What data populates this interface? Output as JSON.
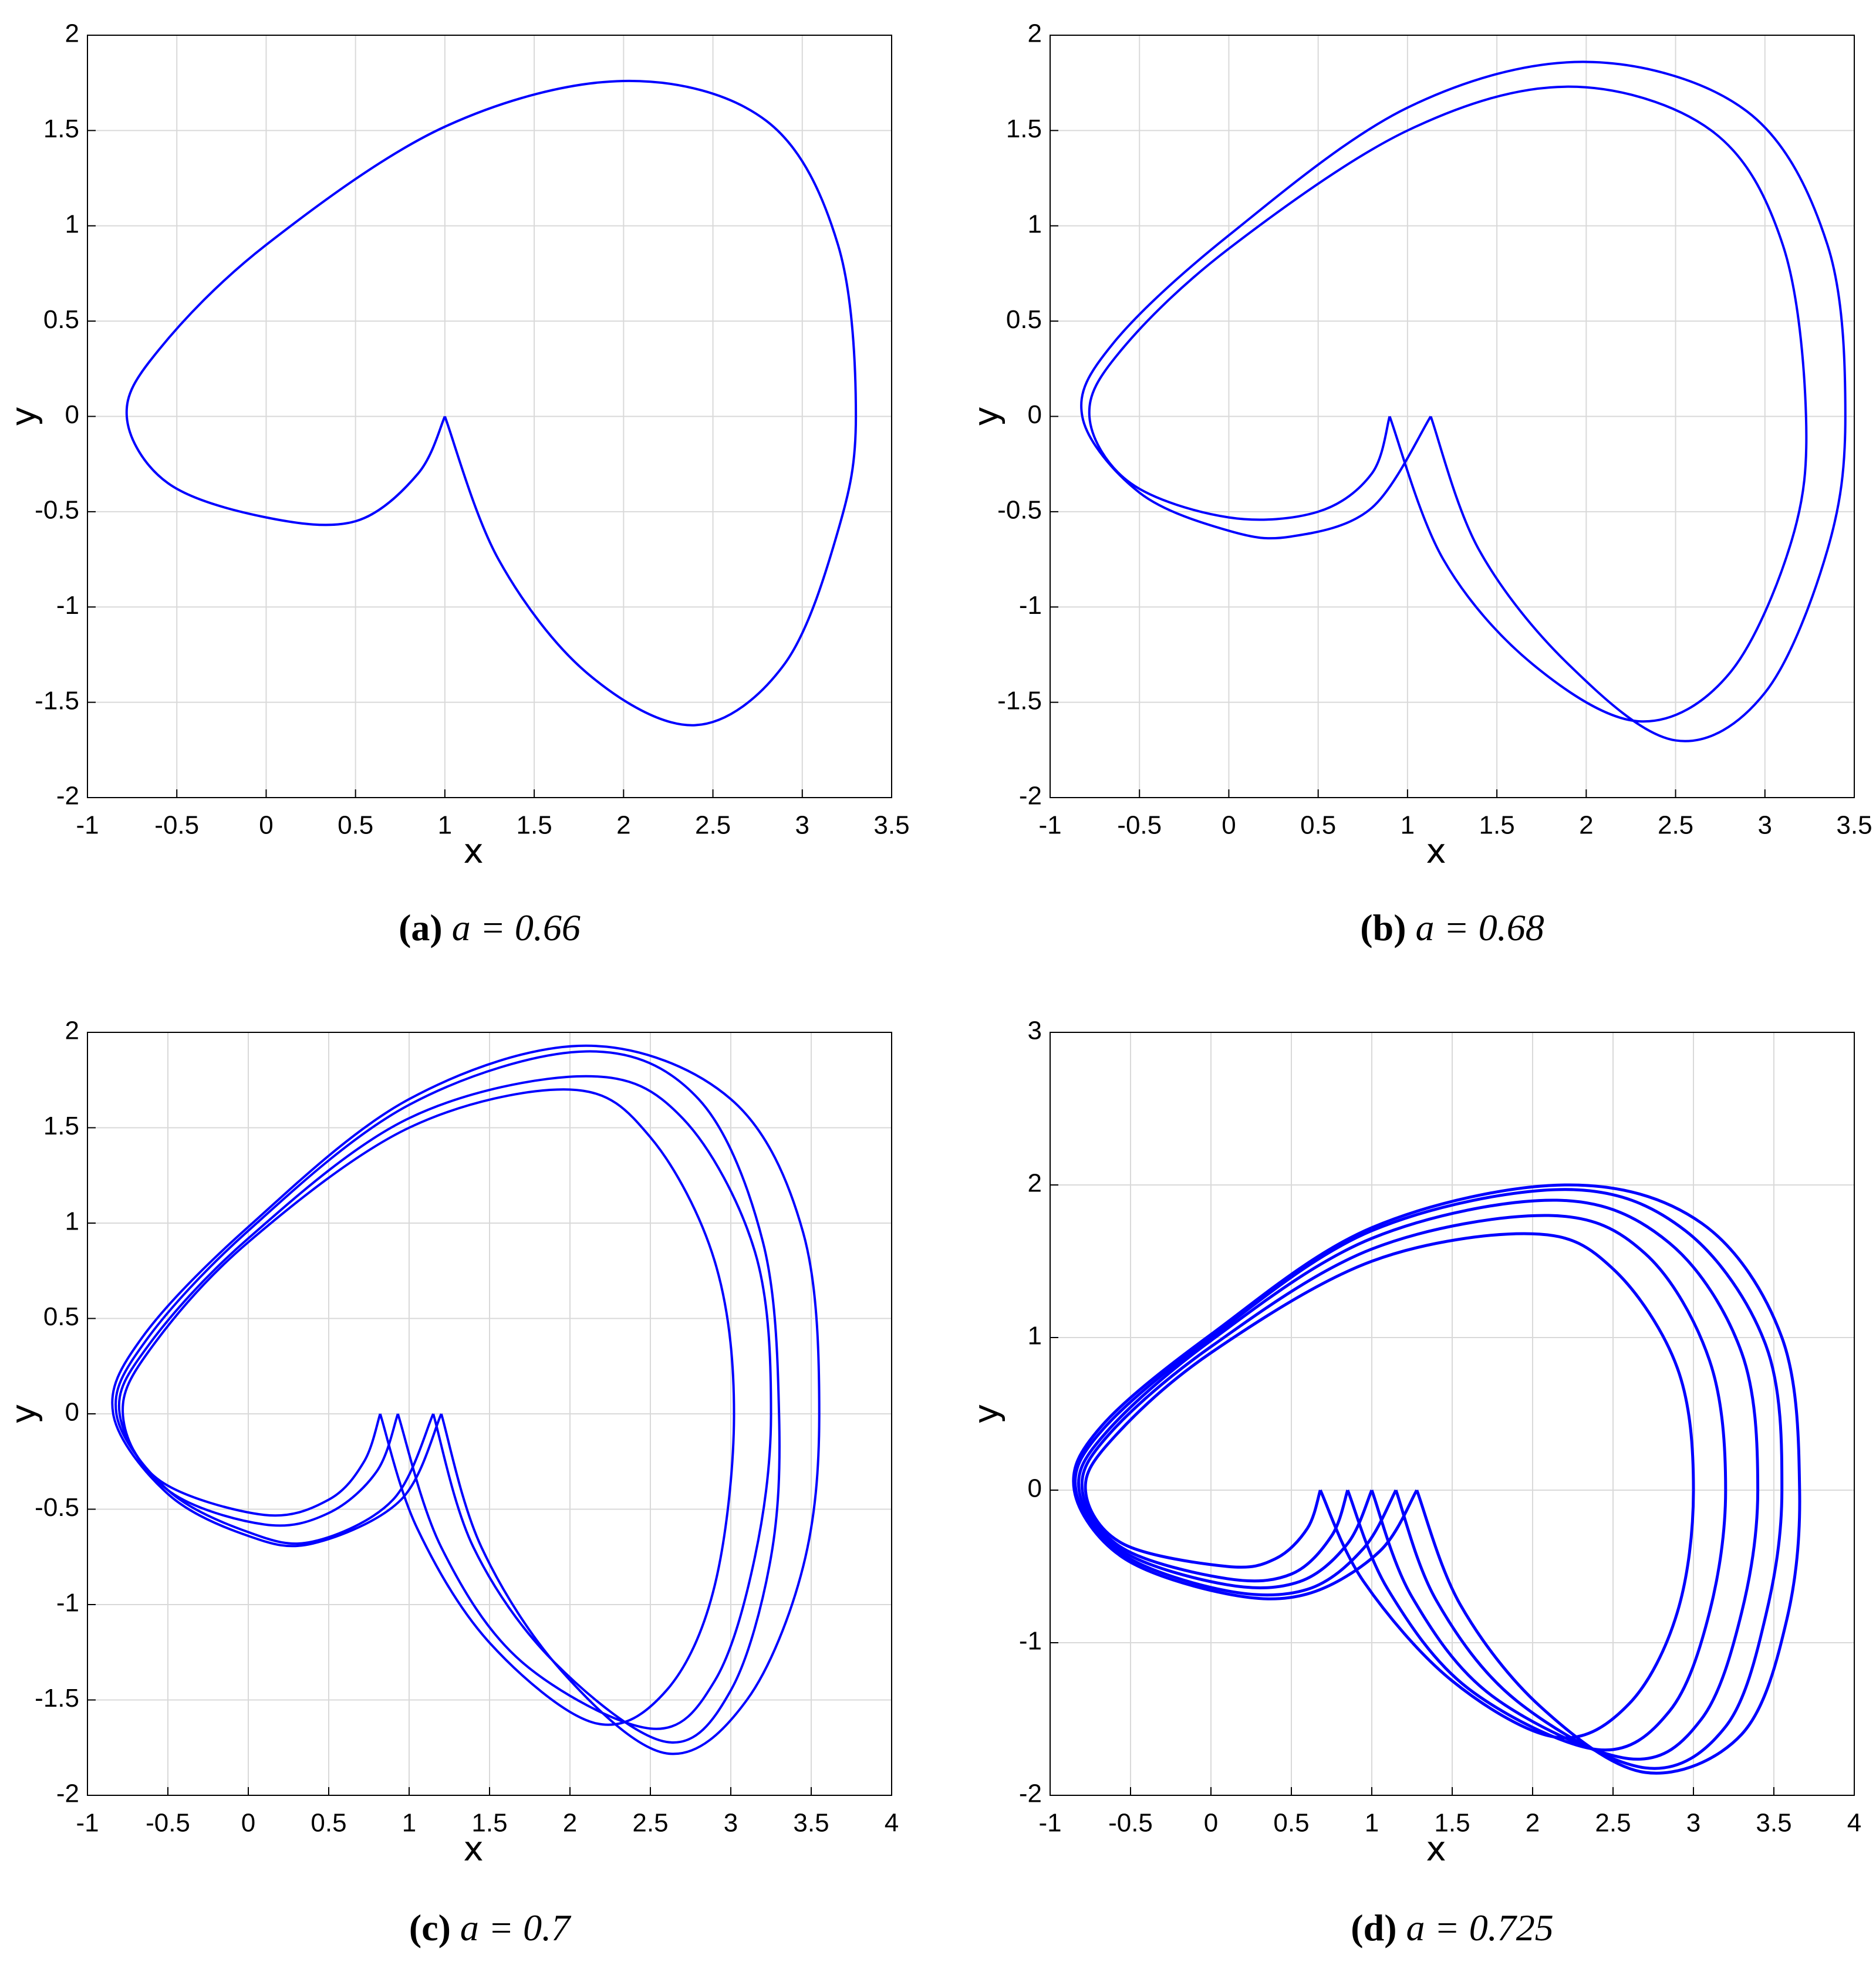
{
  "chart_data": [
    {
      "type": "line",
      "panel": "(a)",
      "caption": "a = 0.66",
      "x_label": "x",
      "y_label": "y",
      "xlim": [
        -1,
        3.5
      ],
      "ylim": [
        -2,
        2
      ],
      "xticks": [
        -1,
        -0.5,
        0,
        0.5,
        1,
        1.5,
        2,
        2.5,
        3,
        3.5
      ],
      "yticks": [
        -2,
        -1.5,
        -1,
        -0.5,
        0,
        0.5,
        1,
        1.5,
        2
      ],
      "grid": true,
      "series": [
        {
          "color": "#0000ff",
          "x": [
            1,
            1.3,
            1.8,
            2.4,
            2.9,
            3.2,
            3.3,
            3.2,
            2.8,
            2,
            1,
            0,
            -0.6,
            -0.78,
            -0.55,
            0,
            0.5,
            0.85,
            1
          ],
          "y": [
            0,
            -0.75,
            -1.35,
            -1.62,
            -1.3,
            -0.6,
            0,
            0.9,
            1.55,
            1.76,
            1.52,
            0.9,
            0.35,
            0,
            -0.35,
            -0.53,
            -0.55,
            -0.3,
            0
          ]
        }
      ]
    },
    {
      "type": "line",
      "panel": "(b)",
      "caption": "a = 0.68",
      "x_label": "x",
      "y_label": "y",
      "xlim": [
        -1,
        3.5
      ],
      "ylim": [
        -2,
        2
      ],
      "xticks": [
        -1,
        -0.5,
        0,
        0.5,
        1,
        1.5,
        2,
        2.5,
        3,
        3.5
      ],
      "yticks": [
        -2,
        -1.5,
        -1,
        -0.5,
        0,
        0.5,
        1,
        1.5,
        2
      ],
      "grid": true,
      "series": [
        {
          "color": "#0000ff",
          "x": [
            0.9,
            1.2,
            1.7,
            2.3,
            2.8,
            3.15,
            3.23,
            3.1,
            2.7,
            1.9,
            1,
            0,
            -0.6,
            -0.78,
            -0.55,
            0,
            0.5,
            0.8,
            0.9
          ],
          "y": [
            0,
            -0.75,
            -1.3,
            -1.6,
            -1.35,
            -0.65,
            0,
            0.9,
            1.5,
            1.73,
            1.5,
            0.88,
            0.35,
            0,
            -0.35,
            -0.53,
            -0.5,
            -0.3,
            0
          ]
        },
        {
          "color": "#0000ff",
          "x": [
            1.13,
            1.4,
            1.9,
            2.5,
            3.0,
            3.35,
            3.45,
            3.35,
            2.9,
            2,
            1,
            0,
            -0.65,
            -0.82,
            -0.5,
            0,
            0.35,
            0.8,
            1.13
          ],
          "y": [
            0,
            -0.7,
            -1.3,
            -1.7,
            -1.45,
            -0.7,
            0,
            0.9,
            1.6,
            1.86,
            1.62,
            0.95,
            0.38,
            0,
            -0.4,
            -0.6,
            -0.63,
            -0.48,
            0
          ]
        }
      ]
    },
    {
      "type": "line",
      "panel": "(c)",
      "caption": "a = 0.7",
      "x_label": "x",
      "y_label": "y",
      "xlim": [
        -1,
        4
      ],
      "ylim": [
        -2,
        2
      ],
      "xticks": [
        -1,
        -0.5,
        0,
        0.5,
        1,
        1.5,
        2,
        2.5,
        3,
        3.5,
        4
      ],
      "yticks": [
        -2,
        -1.5,
        -1,
        -0.5,
        0,
        0.5,
        1,
        1.5,
        2
      ],
      "grid": true,
      "series": [
        {
          "color": "#0000ff",
          "x": [
            0.82,
            1.05,
            1.5,
            2.15,
            2.6,
            2.9,
            3.02,
            2.9,
            2.5,
            2,
            1,
            0,
            -0.6,
            -0.78,
            -0.55,
            0.1,
            0.5,
            0.72,
            0.82
          ],
          "y": [
            0,
            -0.6,
            -1.2,
            -1.62,
            -1.45,
            -0.9,
            0,
            0.8,
            1.45,
            1.7,
            1.5,
            0.9,
            0.35,
            0,
            -0.35,
            -0.53,
            -0.45,
            -0.25,
            0
          ]
        },
        {
          "color": "#0000ff",
          "x": [
            0.93,
            1.2,
            1.7,
            2.5,
            2.9,
            3.15,
            3.25,
            3.15,
            2.7,
            2.1,
            1,
            0,
            -0.62,
            -0.8,
            -0.5,
            0.1,
            0.5,
            0.8,
            0.93
          ],
          "y": [
            0,
            -0.7,
            -1.3,
            -1.65,
            -1.4,
            -0.75,
            0,
            0.85,
            1.55,
            1.77,
            1.55,
            0.92,
            0.36,
            0,
            -0.4,
            -0.58,
            -0.52,
            -0.3,
            0
          ]
        },
        {
          "color": "#0000ff",
          "x": [
            1.15,
            1.4,
            1.9,
            2.6,
            3.0,
            3.25,
            3.3,
            3.2,
            2.8,
            2.1,
            1,
            0,
            -0.64,
            -0.82,
            -0.5,
            0,
            0.4,
            0.9,
            1.15
          ],
          "y": [
            0,
            -0.7,
            -1.3,
            -1.72,
            -1.45,
            -0.75,
            0,
            0.9,
            1.65,
            1.9,
            1.62,
            0.96,
            0.38,
            0,
            -0.4,
            -0.62,
            -0.67,
            -0.45,
            0
          ]
        },
        {
          "color": "#0000ff",
          "x": [
            1.2,
            1.45,
            1.95,
            2.6,
            3.1,
            3.45,
            3.55,
            3.45,
            3.0,
            2.1,
            1,
            0,
            -0.66,
            -0.84,
            -0.5,
            0,
            0.4,
            0.95,
            1.2
          ],
          "y": [
            0,
            -0.7,
            -1.35,
            -1.78,
            -1.5,
            -0.8,
            0,
            0.95,
            1.65,
            1.93,
            1.65,
            0.98,
            0.4,
            0,
            -0.42,
            -0.64,
            -0.68,
            -0.45,
            0
          ]
        }
      ]
    },
    {
      "type": "line",
      "panel": "(d)",
      "caption": "a = 0.725",
      "x_label": "x",
      "y_label": "y",
      "xlim": [
        -1,
        4
      ],
      "ylim": [
        -2,
        3
      ],
      "xticks": [
        -1,
        -0.5,
        0,
        0.5,
        1,
        1.5,
        2,
        2.5,
        3,
        3.5,
        4
      ],
      "yticks": [
        -2,
        -1,
        0,
        1,
        2,
        3
      ],
      "grid": true,
      "series": [
        {
          "color": "#0000ff",
          "x": [
            0.68,
            0.95,
            1.5,
            2.15,
            2.6,
            2.9,
            3.0,
            2.9,
            2.5,
            2.0,
            1,
            0,
            -0.6,
            -0.78,
            -0.55,
            0.1,
            0.4,
            0.6,
            0.68
          ],
          "y": [
            0,
            -0.6,
            -1.25,
            -1.62,
            -1.4,
            -0.8,
            0,
            0.8,
            1.45,
            1.68,
            1.5,
            0.9,
            0.35,
            0,
            -0.35,
            -0.5,
            -0.45,
            -0.25,
            0
          ]
        },
        {
          "color": "#0000ff",
          "x": [
            0.85,
            1.1,
            1.6,
            2.4,
            2.85,
            3.1,
            3.2,
            3.1,
            2.7,
            2.1,
            1,
            0,
            -0.63,
            -0.8,
            -0.55,
            0.1,
            0.5,
            0.75,
            0.85
          ],
          "y": [
            0,
            -0.65,
            -1.3,
            -1.7,
            -1.45,
            -0.8,
            0,
            0.85,
            1.55,
            1.8,
            1.58,
            0.94,
            0.37,
            0,
            -0.38,
            -0.58,
            -0.55,
            -0.3,
            0
          ]
        },
        {
          "color": "#0000ff",
          "x": [
            1.0,
            1.25,
            1.75,
            2.6,
            3.05,
            3.3,
            3.4,
            3.3,
            2.85,
            2.15,
            1,
            0,
            -0.65,
            -0.82,
            -0.55,
            0.1,
            0.55,
            0.85,
            1.0
          ],
          "y": [
            0,
            -0.7,
            -1.35,
            -1.76,
            -1.5,
            -0.8,
            0,
            0.9,
            1.62,
            1.9,
            1.65,
            0.98,
            0.38,
            0,
            -0.4,
            -0.62,
            -0.6,
            -0.35,
            0
          ]
        },
        {
          "color": "#0000ff",
          "x": [
            1.15,
            1.4,
            1.9,
            2.7,
            3.2,
            3.45,
            3.55,
            3.45,
            2.95,
            2.2,
            1,
            0,
            -0.67,
            -0.84,
            -0.55,
            0.1,
            0.6,
            0.95,
            1.15
          ],
          "y": [
            0,
            -0.72,
            -1.38,
            -1.82,
            -1.55,
            -0.82,
            0,
            0.95,
            1.7,
            1.97,
            1.7,
            1.0,
            0.4,
            0,
            -0.42,
            -0.66,
            -0.65,
            -0.38,
            0
          ]
        },
        {
          "color": "#0000ff",
          "x": [
            1.28,
            1.55,
            2.05,
            2.7,
            3.3,
            3.58,
            3.66,
            3.55,
            3.05,
            2.2,
            1,
            0,
            -0.68,
            -0.85,
            -0.55,
            0.1,
            0.6,
            1.05,
            1.28
          ],
          "y": [
            0,
            -0.75,
            -1.42,
            -1.85,
            -1.6,
            -0.85,
            0,
            1.0,
            1.75,
            2.0,
            1.72,
            1.02,
            0.42,
            0,
            -0.44,
            -0.68,
            -0.68,
            -0.4,
            0
          ]
        }
      ]
    }
  ]
}
